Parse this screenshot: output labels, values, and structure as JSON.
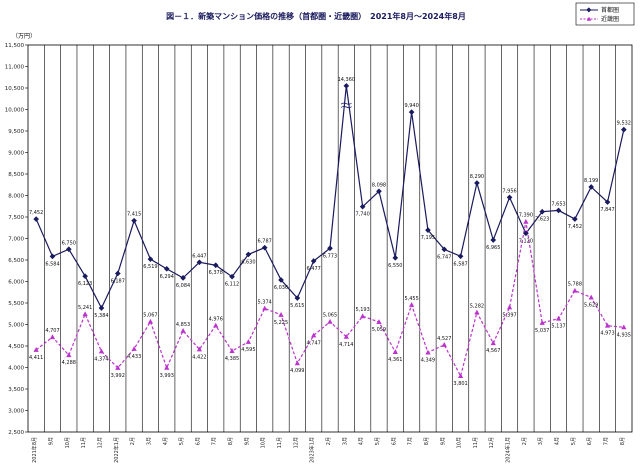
{
  "chart_data": {
    "type": "line",
    "title": "図－１．新築マンション価格の推移（首都圏・近畿圏）　2021年8月～2024年8月",
    "ylabel": "（万円）",
    "ylim": [
      2500,
      11500
    ],
    "yticks": [
      2500,
      3000,
      3500,
      4000,
      4500,
      5000,
      5500,
      6000,
      6500,
      7000,
      7500,
      8000,
      8500,
      9000,
      9500,
      10000,
      10500,
      11000,
      11500
    ],
    "ytick_labels": [
      "2,500",
      "3,000",
      "3,500",
      "4,000",
      "4,500",
      "5,000",
      "5,500",
      "6,000",
      "6,500",
      "7,000",
      "7,500",
      "8,000",
      "8,500",
      "9,000",
      "9,500",
      "10,000",
      "10,500",
      "11,000",
      "11,500"
    ],
    "break_marker": "≈",
    "categories": [
      "2021年8月",
      "9月",
      "10月",
      "11月",
      "12月",
      "2022年1月",
      "2月",
      "3月",
      "4月",
      "5月",
      "6月",
      "7月",
      "8月",
      "9月",
      "10月",
      "11月",
      "12月",
      "2023年1月",
      "2月",
      "3月",
      "4月",
      "5月",
      "6月",
      "7月",
      "8月",
      "9月",
      "10月",
      "11月",
      "12月",
      "2024年1月",
      "2月",
      "3月",
      "4月",
      "5月",
      "6月",
      "7月",
      "8月"
    ],
    "series": [
      {
        "name": "首都圏",
        "color": "#1a1a5e",
        "values": [
          7452,
          6584,
          6750,
          6123,
          5384,
          6187,
          7415,
          6519,
          6294,
          6084,
          6447,
          6378,
          6112,
          6630,
          6787,
          6036,
          5615,
          6477,
          6773,
          14360,
          7740,
          8098,
          6550,
          9940,
          7195,
          6747,
          6587,
          8290,
          6965,
          7956,
          7120,
          7623,
          7653,
          7452,
          8199,
          7847,
          9532
        ],
        "labels": [
          "7,452",
          "6,584",
          "6,750",
          "6,123",
          "5,384",
          "6,187",
          "7,415",
          "6,519",
          "6,294",
          "6,084",
          "6,447",
          "6,378",
          "6,112",
          "6,630",
          "6,787",
          "6,036",
          "5,615",
          "6,477",
          "6,773",
          "14,360",
          "7,740",
          "8,098",
          "6,550",
          "9,940",
          "7,195",
          "6,747",
          "6,587",
          "8,290",
          "6,965",
          "7,956",
          "7,120",
          "7,623",
          "7,653",
          "7,452",
          "8,199",
          "7,847",
          "9,532"
        ]
      },
      {
        "name": "近畿圏",
        "color": "#bb33cc",
        "values": [
          4411,
          4707,
          4288,
          5241,
          4374,
          3992,
          4433,
          5067,
          3993,
          4853,
          4422,
          4976,
          4385,
          4595,
          5374,
          5225,
          4099,
          4747,
          5065,
          4714,
          5193,
          5059,
          4361,
          5455,
          4349,
          4527,
          3801,
          5282,
          4567,
          5397,
          7390,
          5037,
          5137,
          5788,
          5629,
          4973,
          4935
        ],
        "labels": [
          "4,411",
          "4,707",
          "4,288",
          "5,241",
          "4,374",
          "3,992",
          "4,433",
          "5,067",
          "3,993",
          "4,853",
          "4,422",
          "4,976",
          "4,385",
          "4,595",
          "5,374",
          "5,225",
          "4,099",
          "4,747",
          "5,065",
          "4,714",
          "5,193",
          "5,059",
          "4,361",
          "5,455",
          "4,349",
          "4,527",
          "3,801",
          "5,282",
          "4,567",
          "5,397",
          "7,390",
          "5,037",
          "5,137",
          "5,788",
          "5,629",
          "4,973",
          "4,935"
        ]
      }
    ],
    "grid": true,
    "legend": "top-right"
  }
}
